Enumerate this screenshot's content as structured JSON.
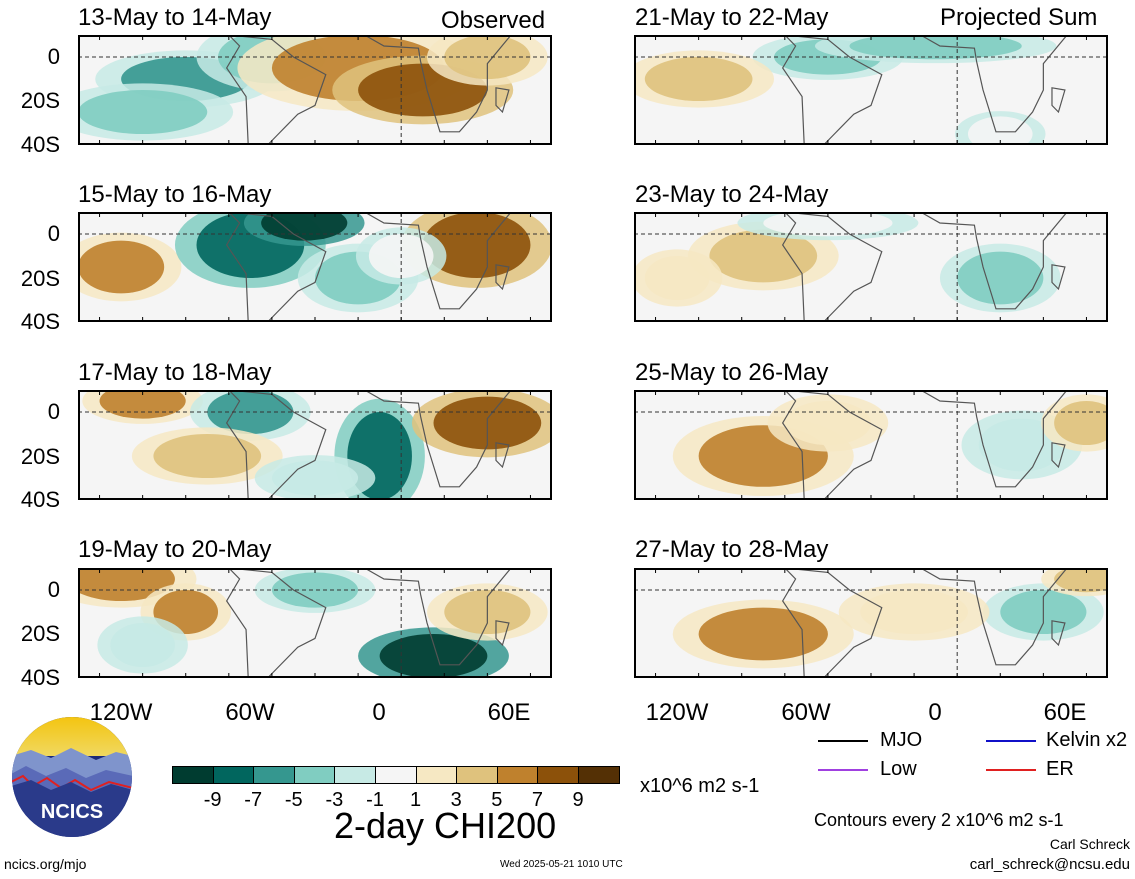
{
  "panels_left": [
    {
      "title": "13-May to 14-May",
      "tag": "Observed"
    },
    {
      "title": "15-May to 16-May",
      "tag": ""
    },
    {
      "title": "17-May to 18-May",
      "tag": ""
    },
    {
      "title": "19-May to 20-May",
      "tag": ""
    }
  ],
  "panels_right": [
    {
      "title": "21-May to 22-May",
      "tag": "Projected Sum"
    },
    {
      "title": "23-May to 24-May",
      "tag": ""
    },
    {
      "title": "25-May to 26-May",
      "tag": ""
    },
    {
      "title": "27-May to 28-May",
      "tag": ""
    }
  ],
  "lat_labels": [
    "0",
    "20S",
    "40S"
  ],
  "lon_labels": [
    "120W",
    "60W",
    "0",
    "60E"
  ],
  "legend": {
    "mjo": "MJO",
    "kelvin": "Kelvin x2",
    "low": "Low",
    "er": "ER",
    "mjo_color": "#000000",
    "kelvin_color": "#1010c8",
    "low_color": "#a040e0",
    "er_color": "#e02020"
  },
  "colorbar": {
    "labels": [
      "-9",
      "-7",
      "-5",
      "-3",
      "-1",
      "1",
      "3",
      "5",
      "7",
      "9"
    ],
    "colors": [
      "#003c30",
      "#01665e",
      "#35978f",
      "#80cdc1",
      "#c7eae5",
      "#f5f5f5",
      "#f6e8c3",
      "#dfc27d",
      "#bf812d",
      "#8c510a",
      "#543005"
    ],
    "units": "x10^6 m2 s-1"
  },
  "title": "2-day CHI200",
  "contour_note": "Contours every 2 x10^6 m2 s-1",
  "logo_text": "NCICS",
  "url": "ncics.org/mjo",
  "timestamp": "Wed 2025-05-21 1010 UTC",
  "author": "Carl Schreck",
  "email": "carl_schreck@ncsu.edu"
}
